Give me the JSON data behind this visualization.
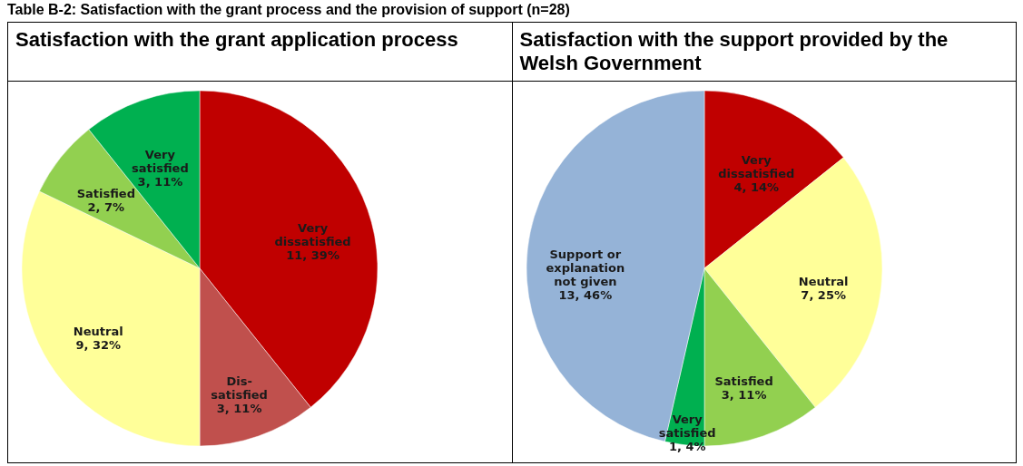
{
  "chart_data": [
    {
      "type": "pie",
      "title": "Satisfaction with the grant application process",
      "annotations": [
        "Table B-2: Satisfaction with the grant process and the provision of support (n=28)"
      ],
      "categories": [
        "Very dissatisfied",
        "Dis- satisfied",
        "Neutral",
        "Satisfied",
        "Very satisfied"
      ],
      "values": [
        11,
        3,
        9,
        2,
        3
      ],
      "value_labels": [
        "11, 39%",
        "3, 11%",
        "9, 32%",
        "2, 7%",
        "3, 11%"
      ],
      "colors": [
        "#c00000",
        "#c0504d",
        "#ffff99",
        "#92d050",
        "#00b050"
      ],
      "legend": false
    },
    {
      "type": "pie",
      "title": "Satisfaction with the support provided by the Welsh Government",
      "categories": [
        "Very dissatisfied",
        "Neutral",
        "Satisfied",
        "Very satisfied",
        "Support or explanation not given"
      ],
      "values": [
        4,
        7,
        3,
        1,
        13
      ],
      "value_labels": [
        "4, 14%",
        "7, 25%",
        "3, 11%",
        "1, 4%",
        "13, 46%"
      ],
      "colors": [
        "#c00000",
        "#ffff99",
        "#92d050",
        "#00b050",
        "#95b3d7"
      ],
      "legend": false
    }
  ]
}
